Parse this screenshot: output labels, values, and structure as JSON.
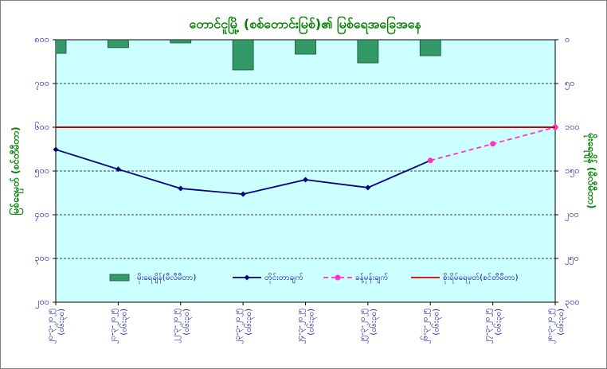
{
  "chart_data": {
    "type": "combo",
    "title": "တောင်ငူမြို့ (စစ်တောင်းမြစ်)၏ မြစ်ရေအခြေအနေ",
    "y_label": "မြစ်ရေမှတ် (စင်တီမီတာ)",
    "y2_label": "မိုးရေချိန် (မီလီမီတာ)",
    "categories": [
      "၂၀-၃-၂၀၂၅",
      "၂၁-၃-၂၀၂၅",
      "၂၂-၃-၂၀၂၅",
      "၂၃-၃-၂၀၂၅",
      "၂၄-၃-၂၀၂၅",
      "၂၅-၃-၂၀၂၅",
      "၂၆-၃-၂၀၂၅",
      "၂၇-၃-၂၀၂၅",
      "၂၈-၃-၂၀၂၅"
    ],
    "category_times": [
      "(၀၆:၃၀)",
      "(၀၆:၃၀)",
      "(၀၆:၃၀)",
      "(၀၆:၃၀)",
      "(၀၆:၃၀)",
      "(၀၆:၃၀)",
      "(၀၆:၃၀)",
      "(၀၆:၃၀)",
      "(၀၆:၃၀)"
    ],
    "ylim": [
      200,
      800
    ],
    "yticks": [
      {
        "value": 200,
        "label": "၂၀၀"
      },
      {
        "value": 300,
        "label": "၃၀၀"
      },
      {
        "value": 400,
        "label": "၄၀၀"
      },
      {
        "value": 500,
        "label": "၅၀၀"
      },
      {
        "value": 600,
        "label": "၆၀၀"
      },
      {
        "value": 700,
        "label": "၇၀၀"
      },
      {
        "value": 800,
        "label": "၈၀၀"
      }
    ],
    "y2lim": [
      0,
      300
    ],
    "y2_reversed": true,
    "y2ticks": [
      {
        "value": 0,
        "label": "၀"
      },
      {
        "value": 50,
        "label": "၅၀"
      },
      {
        "value": 100,
        "label": "၁၀၀"
      },
      {
        "value": 150,
        "label": "၁၅၀"
      },
      {
        "value": 200,
        "label": "၂၀၀"
      },
      {
        "value": 250,
        "label": "၂၅၀"
      },
      {
        "value": 300,
        "label": "၃၀၀"
      }
    ],
    "grid": true,
    "background": "#ccffff",
    "series": [
      {
        "name": "မိုးရေချိန်(မီလီမီတာ)",
        "style": "bar",
        "axis": "y2",
        "color": "#339966",
        "values": [
          15.5,
          9,
          3.6,
          34.5,
          16.4,
          26.4,
          18.2,
          null,
          null
        ]
      },
      {
        "name": "တိုင်းတာချက်",
        "style": "line",
        "marker": "diamond",
        "color": "#000080",
        "values": [
          549,
          504,
          460,
          447,
          480,
          462,
          524,
          null,
          null
        ]
      },
      {
        "name": "ခန့်မှန်းချက်",
        "style": "dashed",
        "marker": "circle",
        "color": "#ff33cc",
        "values": [
          null,
          null,
          null,
          null,
          null,
          null,
          524,
          562,
          600
        ]
      },
      {
        "name": "စိုးရိမ်ရေမှတ်(စင်တီမီတာ)",
        "style": "line",
        "marker": "none",
        "color": "#cc0000",
        "values": [
          600,
          600,
          600,
          600,
          600,
          600,
          600,
          600,
          600
        ]
      }
    ]
  }
}
